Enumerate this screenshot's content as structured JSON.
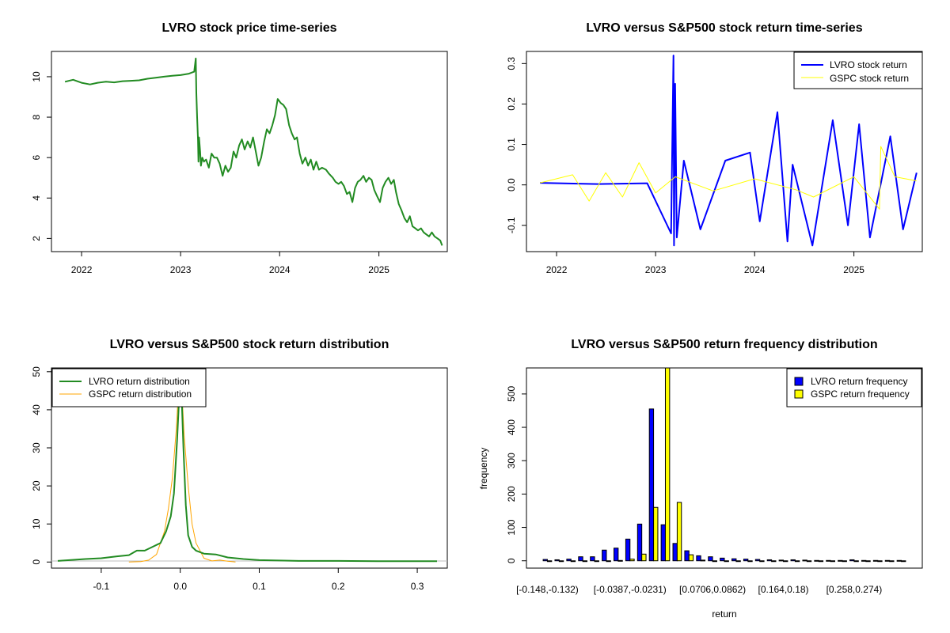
{
  "chart_data": [
    {
      "type": "line",
      "title": "LVRO stock price time-series",
      "xlabel": "",
      "ylabel": "",
      "xlim": [
        "2021-09-12",
        "2025-09-10"
      ],
      "ylim": [
        1.35,
        11.25
      ],
      "x_ticks": [
        "2022",
        "2023",
        "2024",
        "2025"
      ],
      "y_ticks": [
        "2",
        "4",
        "6",
        "8",
        "10"
      ],
      "grid": false,
      "colors": {
        "series": "#228B22"
      },
      "series": [
        {
          "x": [
            "2021-11-01",
            "2021-12-01",
            "2022-01-01",
            "2022-02-01",
            "2022-03-01",
            "2022-04-01",
            "2022-05-01",
            "2022-06-01",
            "2022-07-01",
            "2022-08-01",
            "2022-09-01",
            "2022-10-01",
            "2022-11-01",
            "2022-12-01",
            "2023-01-01",
            "2023-02-01",
            "2023-02-20",
            "2023-02-26",
            "2023-02-28",
            "2023-03-03",
            "2023-03-06",
            "2023-03-08",
            "2023-03-10",
            "2023-03-14",
            "2023-03-17",
            "2023-03-22",
            "2023-03-28",
            "2023-04-05",
            "2023-04-15",
            "2023-04-25",
            "2023-05-05",
            "2023-05-15",
            "2023-05-25",
            "2023-06-05",
            "2023-06-15",
            "2023-06-25",
            "2023-07-05",
            "2023-07-15",
            "2023-07-25",
            "2023-08-05",
            "2023-08-15",
            "2023-08-25",
            "2023-09-05",
            "2023-09-15",
            "2023-09-25",
            "2023-10-05",
            "2023-10-15",
            "2023-10-25",
            "2023-11-05",
            "2023-11-15",
            "2023-11-25",
            "2023-12-05",
            "2023-12-15",
            "2023-12-25",
            "2024-01-05",
            "2024-01-15",
            "2024-01-25",
            "2024-02-05",
            "2024-02-15",
            "2024-02-25",
            "2024-03-05",
            "2024-03-15",
            "2024-03-25",
            "2024-04-05",
            "2024-04-15",
            "2024-04-25",
            "2024-05-05",
            "2024-05-15",
            "2024-05-25",
            "2024-06-05",
            "2024-06-20",
            "2024-07-01",
            "2024-07-15",
            "2024-07-25",
            "2024-08-05",
            "2024-08-15",
            "2024-08-25",
            "2024-09-05",
            "2024-09-15",
            "2024-09-25",
            "2024-10-05",
            "2024-10-15",
            "2024-10-25",
            "2024-11-05",
            "2024-11-15",
            "2024-11-25",
            "2024-12-05",
            "2024-12-15",
            "2024-12-25",
            "2025-01-05",
            "2025-01-15",
            "2025-01-25",
            "2025-02-05",
            "2025-02-15",
            "2025-02-25",
            "2025-03-05",
            "2025-03-15",
            "2025-03-25",
            "2025-04-05",
            "2025-04-15",
            "2025-04-25",
            "2025-05-05",
            "2025-05-15",
            "2025-05-25",
            "2025-06-05",
            "2025-06-15",
            "2025-06-25",
            "2025-07-05",
            "2025-07-15",
            "2025-07-25",
            "2025-08-05",
            "2025-08-15",
            "2025-08-22"
          ],
          "y": [
            9.75,
            9.85,
            9.7,
            9.62,
            9.7,
            9.75,
            9.72,
            9.78,
            9.8,
            9.82,
            9.9,
            9.95,
            10.0,
            10.05,
            10.08,
            10.15,
            10.25,
            10.9,
            9.2,
            8.0,
            6.9,
            5.8,
            7.0,
            6.3,
            5.6,
            6.0,
            5.8,
            5.9,
            5.5,
            6.2,
            6.0,
            6.0,
            5.7,
            5.1,
            5.6,
            5.3,
            5.5,
            6.3,
            6.0,
            6.6,
            6.9,
            6.4,
            6.8,
            6.5,
            7.0,
            6.3,
            5.6,
            6.0,
            6.8,
            7.4,
            7.2,
            7.6,
            8.1,
            8.9,
            8.7,
            8.6,
            8.4,
            7.6,
            7.2,
            6.9,
            7.0,
            6.2,
            5.7,
            6.0,
            5.6,
            5.9,
            5.4,
            5.8,
            5.4,
            5.5,
            5.4,
            5.2,
            5.0,
            4.8,
            4.7,
            4.8,
            4.6,
            4.2,
            4.3,
            3.8,
            4.5,
            4.8,
            4.9,
            5.1,
            4.8,
            5.0,
            4.9,
            4.4,
            4.1,
            3.8,
            4.5,
            4.8,
            5.0,
            4.7,
            4.9,
            4.3,
            3.7,
            3.4,
            3.0,
            2.8,
            3.1,
            2.6,
            2.5,
            2.4,
            2.5,
            2.3,
            2.2,
            2.1,
            2.3,
            2.1,
            2.0,
            1.9,
            1.65
          ]
        }
      ]
    },
    {
      "type": "line",
      "title": "LVRO versus S&P500 stock return time-series",
      "xlabel": "",
      "ylabel": "",
      "xlim": [
        "2021-09-12",
        "2025-09-10"
      ],
      "ylim": [
        -0.165,
        0.33
      ],
      "x_ticks": [
        "2022",
        "2023",
        "2024",
        "2025"
      ],
      "y_ticks": [
        "-0.1",
        "0.0",
        "0.1",
        "0.2",
        "0.3"
      ],
      "grid": false,
      "legend_position": "top-right",
      "colors": {
        "lvro": "#0000FF",
        "gspc": "#FFFF00"
      },
      "series": [
        {
          "name": "LVRO stock return",
          "x": [
            "2021-11-01",
            "2022-06-01",
            "2022-12-01",
            "2023-02-27",
            "2023-03-08",
            "2023-03-10",
            "2023-03-14",
            "2023-03-20",
            "2023-04-15",
            "2023-06-15",
            "2023-09-15",
            "2023-12-15",
            "2024-01-20",
            "2024-03-25",
            "2024-05-01",
            "2024-05-20",
            "2024-08-01",
            "2024-10-15",
            "2024-12-10",
            "2025-01-20",
            "2025-03-01",
            "2025-05-15",
            "2025-07-01",
            "2025-08-20"
          ],
          "y": [
            0.005,
            0.002,
            0.004,
            -0.12,
            0.32,
            -0.15,
            0.25,
            -0.13,
            0.06,
            -0.11,
            0.06,
            0.08,
            -0.09,
            0.18,
            -0.14,
            0.05,
            -0.15,
            0.16,
            -0.1,
            0.15,
            -0.13,
            0.12,
            -0.11,
            0.03
          ]
        },
        {
          "name": "GSPC stock return",
          "x": [
            "2021-11-01",
            "2022-03-01",
            "2022-05-01",
            "2022-07-01",
            "2022-09-01",
            "2022-11-01",
            "2023-01-01",
            "2023-03-15",
            "2023-08-01",
            "2024-01-01",
            "2024-06-01",
            "2024-08-05",
            "2025-01-01",
            "2025-04-05",
            "2025-04-10",
            "2025-06-01",
            "2025-08-20"
          ],
          "y": [
            0.005,
            0.025,
            -0.04,
            0.03,
            -0.03,
            0.055,
            -0.02,
            0.02,
            -0.015,
            0.015,
            -0.012,
            -0.03,
            0.02,
            -0.06,
            0.095,
            0.02,
            0.01
          ]
        }
      ]
    },
    {
      "type": "line",
      "title": "LVRO versus S&P500 stock return distribution",
      "xlabel": "",
      "ylabel": "",
      "xlim": [
        -0.163,
        0.338
      ],
      "ylim": [
        -1.6,
        51.0
      ],
      "x_ticks": [
        "-0.1",
        "0.0",
        "0.1",
        "0.2",
        "0.3"
      ],
      "y_ticks": [
        "0",
        "10",
        "20",
        "30",
        "40",
        "50"
      ],
      "grid": false,
      "legend_position": "top-left",
      "colors": {
        "lvro": "#228B22",
        "gspc": "#FFA500"
      },
      "series": [
        {
          "name": "LVRO return distribution",
          "x": [
            -0.155,
            -0.12,
            -0.1,
            -0.08,
            -0.065,
            -0.055,
            -0.045,
            -0.035,
            -0.025,
            -0.018,
            -0.012,
            -0.008,
            -0.004,
            -0.001,
            0.002,
            0.004,
            0.007,
            0.01,
            0.015,
            0.02,
            0.03,
            0.045,
            0.06,
            0.08,
            0.1,
            0.15,
            0.2,
            0.25,
            0.3,
            0.325
          ],
          "y": [
            0.3,
            0.8,
            1.0,
            1.5,
            1.8,
            3.0,
            3.0,
            4.0,
            5.0,
            8.0,
            12.0,
            18.0,
            32.0,
            45.0,
            42.0,
            30.0,
            15.0,
            7.0,
            4.0,
            3.0,
            2.2,
            2.0,
            1.2,
            0.8,
            0.5,
            0.3,
            0.3,
            0.2,
            0.2,
            0.2
          ]
        },
        {
          "name": "GSPC return distribution",
          "x": [
            -0.065,
            -0.05,
            -0.04,
            -0.03,
            -0.02,
            -0.015,
            -0.01,
            -0.005,
            -0.002,
            0.0,
            0.002,
            0.005,
            0.01,
            0.015,
            0.02,
            0.03,
            0.04,
            0.05,
            0.06,
            0.07
          ],
          "y": [
            0.0,
            0.1,
            0.5,
            2.0,
            8.0,
            14.0,
            22.0,
            35.0,
            46.0,
            48.0,
            45.0,
            33.0,
            20.0,
            10.0,
            5.0,
            1.0,
            0.3,
            0.5,
            0.2,
            0.0
          ]
        }
      ]
    },
    {
      "type": "bar",
      "title": "LVRO versus S&P500 return frequency distribution",
      "xlabel": "return",
      "ylabel": "frequency",
      "ylim": [
        -22,
        578
      ],
      "y_ticks": [
        "0",
        "100",
        "200",
        "300",
        "400",
        "500"
      ],
      "tick_labels": [
        "[-0.148,-0.132)",
        "[-0.0387,-0.0231)",
        "[0.0706,0.0862)",
        "[0.164,0.18)",
        "[0.258,0.274)"
      ],
      "bin_count": 31,
      "grid": false,
      "legend_position": "top-right",
      "colors": {
        "lvro": "#0000FF",
        "gspc": "#FFFF00"
      },
      "series": [
        {
          "name": "LVRO return frequency",
          "values": [
            4,
            3,
            5,
            12,
            12,
            32,
            38,
            65,
            110,
            455,
            108,
            52,
            30,
            15,
            12,
            8,
            6,
            5,
            4,
            3,
            2,
            3,
            2,
            1,
            1,
            1,
            3,
            1,
            1,
            1,
            1
          ]
        },
        {
          "name": "GSPC return frequency",
          "values": [
            0,
            0,
            0,
            0,
            0,
            0,
            1,
            5,
            20,
            160,
            578,
            175,
            18,
            2,
            0,
            0,
            0,
            0,
            0,
            0,
            0,
            0,
            0,
            0,
            0,
            0,
            0,
            0,
            0,
            0,
            0
          ]
        }
      ]
    }
  ]
}
